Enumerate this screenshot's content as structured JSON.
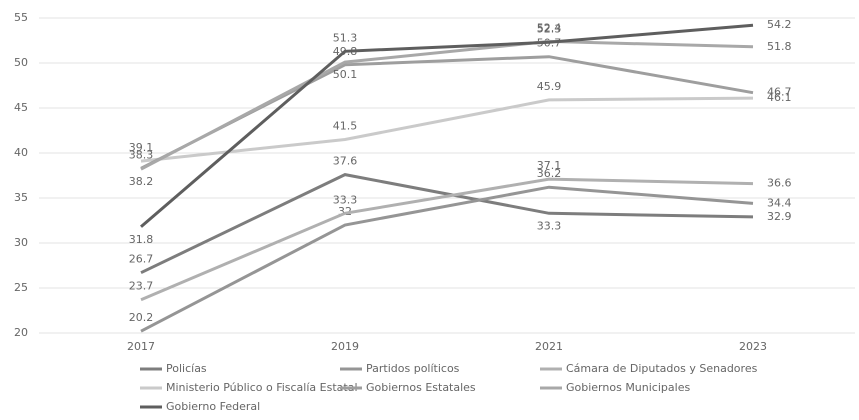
{
  "chart_data": {
    "type": "line",
    "categories": [
      "2017",
      "2019",
      "2021",
      "2023"
    ],
    "series": [
      {
        "name": "Policías",
        "color": "#7d7d7d",
        "values": [
          26.7,
          37.6,
          33.3,
          32.9
        ]
      },
      {
        "name": "Partidos políticos",
        "color": "#959595",
        "values": [
          20.2,
          32,
          36.2,
          34.4
        ]
      },
      {
        "name": "Cámara de Diputados y Senadores",
        "color": "#b0b0b0",
        "values": [
          23.7,
          33.3,
          37.1,
          36.6
        ]
      },
      {
        "name": "Ministerio Público o Fiscalía Estatal",
        "color": "#cacaca",
        "values": [
          39.1,
          41.5,
          45.9,
          46.1
        ]
      },
      {
        "name": "Gobiernos Estatales",
        "color": "#9e9e9e",
        "values": [
          38.3,
          49.8,
          50.7,
          46.7
        ]
      },
      {
        "name": "Gobiernos Municipales",
        "color": "#a8a8a8",
        "values": [
          38.2,
          50.1,
          52.4,
          51.8
        ]
      },
      {
        "name": "Gobierno Federal",
        "color": "#5e5e5e",
        "values": [
          31.8,
          51.3,
          52.3,
          54.2
        ]
      }
    ],
    "ylim": [
      20,
      55
    ],
    "yticks": [
      20,
      25,
      30,
      35,
      40,
      45,
      50,
      55
    ],
    "grid": true
  }
}
